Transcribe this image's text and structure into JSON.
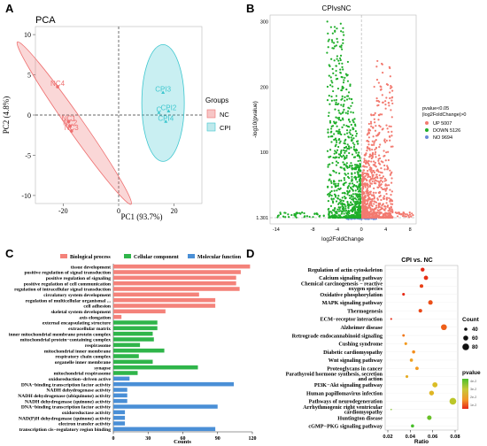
{
  "panel_labels": [
    "A",
    "B",
    "C",
    "D"
  ],
  "colors": {
    "nc": "#ee6f6f",
    "cpi": "#3ec7cf",
    "up": "#f27a70",
    "down": "#1fae2a",
    "no": "#6a8ad8",
    "bio": "#f4827a",
    "cell": "#2fb54a",
    "mol": "#4a8fd6"
  },
  "chart_data": [
    {
      "type": "scatter",
      "panel": "A",
      "title": "PCA",
      "xlabel": "PC1 (93.7%)",
      "ylabel": "PC2 (4.8%)",
      "xlim": [
        -30,
        30
      ],
      "ylim": [
        -11,
        11
      ],
      "x_ticks": [
        "-20",
        "0",
        "20"
      ],
      "y_ticks": [
        "10",
        "5",
        "0",
        "-5",
        "-10"
      ],
      "legend_title": "Groups",
      "legend_position": "right",
      "series": [
        {
          "name": "NC",
          "points": [
            {
              "label": "NC4",
              "x": -22,
              "y": 3.5
            },
            {
              "label": "NC1",
              "x": -18,
              "y": -0.8
            },
            {
              "label": "NC2",
              "x": -17.5,
              "y": -1.4
            },
            {
              "label": "NC3",
              "x": -17,
              "y": -2
            }
          ]
        },
        {
          "name": "CPI",
          "points": [
            {
              "label": "CPI3",
              "x": 16,
              "y": 2.8
            },
            {
              "label": "C",
              "x": 14.5,
              "y": 0.3
            },
            {
              "label": "CPI2",
              "x": 18,
              "y": 0.5
            },
            {
              "label": "CPI4",
              "x": 17,
              "y": -0.8
            }
          ]
        }
      ]
    },
    {
      "type": "scatter",
      "panel": "B",
      "title": "CPIvsNC",
      "xlabel": "log2FoldChange",
      "ylabel": "-log10(pvalue)",
      "xlim": [
        -15,
        9
      ],
      "ylim": [
        0,
        310
      ],
      "x_ticks": [
        "-14",
        "-8",
        "-4",
        "0",
        "4",
        "8"
      ],
      "y_ticks": [
        "300",
        "200",
        "100",
        "1.301"
      ],
      "threshold_y": 1.301,
      "legend_title": "pvalue<0.05\n|log2FoldChange|>0",
      "legend_position": "right",
      "series": [
        {
          "name": "UP 5007"
        },
        {
          "name": "DOWN 5126"
        },
        {
          "name": "NO 9694"
        }
      ]
    },
    {
      "type": "bar",
      "panel": "C",
      "orientation": "horizontal",
      "xlabel": "Counts",
      "x_ticks": [
        "0",
        "30",
        "60",
        "90",
        "120"
      ],
      "xlim": [
        0,
        120
      ],
      "legend": [
        "Biological process",
        "Cellular component",
        "Molecular function"
      ],
      "legend_position": "top",
      "categories": [
        "tissue development",
        "positive regulation of signal transduction",
        "positive regulation of signaling",
        "positive regulation of cell communication",
        "regulation of intracellular signal transduction",
        "circulatory system development",
        "regulation of multicellular organismal ...",
        "cell adhesion",
        "skeletal system development",
        "axis elongation",
        "external encapsulating structure",
        "extracellular matrix",
        "inner mitochondrial membrane protein complex",
        "mitochondrial protein−containing complex",
        "respirasome",
        "mitochondrial inner membrane",
        "respiratory chain complex",
        "organelle inner membrane",
        "synapse",
        "mitochondrial respirasome",
        "oxidoreduction−driven active",
        "DNA−binding transcription factor activity",
        "NADH dehydrogenase activity",
        "NADH dehydrogenase (ubiquinone) activity",
        "NADH dehydrogenase (quinone) activity",
        "DNA−binding transcription factor activity",
        "oxidoreductase activity",
        "NAD(P)H dehydrogenase (quinone) activity",
        "electron transfer activity",
        "transcription cis−regulatory region binding"
      ],
      "groups": [
        "bio",
        "bio",
        "bio",
        "bio",
        "bio",
        "bio",
        "bio",
        "bio",
        "bio",
        "bio",
        "cell",
        "cell",
        "cell",
        "cell",
        "cell",
        "cell",
        "cell",
        "cell",
        "cell",
        "cell",
        "mol",
        "mol",
        "mol",
        "mol",
        "mol",
        "mol",
        "mol",
        "mol",
        "mol",
        "mol"
      ],
      "values": [
        118,
        110,
        106,
        106,
        109,
        74,
        88,
        88,
        45,
        7,
        38,
        38,
        34,
        35,
        23,
        44,
        22,
        34,
        73,
        21,
        14,
        104,
        12,
        12,
        12,
        90,
        10,
        10,
        10,
        88
      ]
    },
    {
      "type": "scatter",
      "panel": "D",
      "title": "CPI vs. NC",
      "xlabel": "Ratio",
      "x_ticks": [
        "0.02",
        "0.04",
        "0.06",
        "0.08"
      ],
      "xlim": [
        0.02,
        0.08
      ],
      "size_legend_title": "Count",
      "size_legend_values": [
        "40",
        "60",
        "80"
      ],
      "color_legend_title": "pvalue",
      "color_legend_labels": [
        "4e-2",
        "3e-2",
        "2e-2",
        "1e-2"
      ],
      "categories": [
        "Regulation of actin cytoskeleton",
        "Calcium signaling pathway",
        "Chemical carcinogenesis − reactive oxygen species",
        "Oxidative phosphorylation",
        "MAPK signaling pathway",
        "Thermogenesis",
        "ECM−receptor interaction",
        "Alzheimer disease",
        "Retrograde endocannabinoid signaling",
        "Cushing syndrome",
        "Diabetic cardiomyopathy",
        "Wnt signaling pathway",
        "Proteoglycans in cancer",
        "Parathyroid hormone synthesis, secretion and action",
        "PI3K−Akt signaling pathway",
        "Human papillomavirus infection",
        "Pathways of neurodegeneration",
        "Arrhythmogenic right ventricular cardiomyopathy",
        "Huntington disease",
        "cGMP−PKG signaling pathway"
      ],
      "ratio": [
        0.051,
        0.054,
        0.05,
        0.034,
        0.058,
        0.049,
        0.023,
        0.07,
        0.034,
        0.036,
        0.043,
        0.041,
        0.046,
        0.037,
        0.062,
        0.059,
        0.078,
        0.023,
        0.057,
        0.042
      ],
      "count": [
        48,
        52,
        45,
        35,
        55,
        45,
        25,
        70,
        33,
        35,
        40,
        40,
        42,
        35,
        62,
        58,
        80,
        20,
        55,
        40
      ],
      "pvalue": [
        0.005,
        0.006,
        0.008,
        0.004,
        0.01,
        0.009,
        0.005,
        0.012,
        0.015,
        0.02,
        0.018,
        0.022,
        0.02,
        0.025,
        0.03,
        0.028,
        0.035,
        0.04,
        0.042,
        0.045
      ]
    }
  ]
}
